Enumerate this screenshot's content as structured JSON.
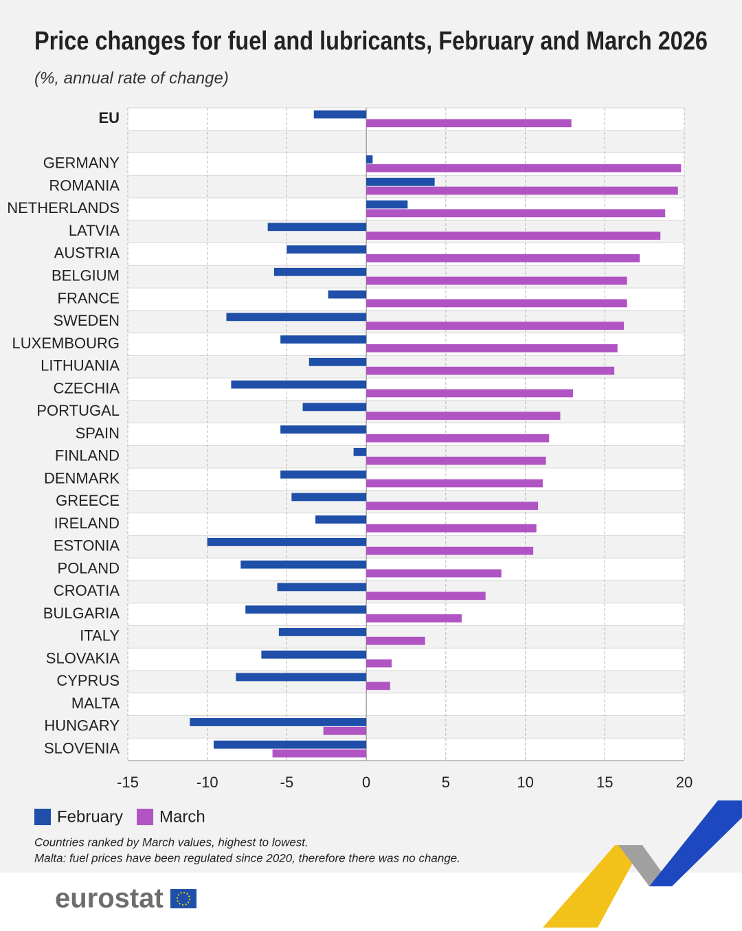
{
  "chart_data": {
    "type": "hbar",
    "title": "Price changes for fuel and lubricants, February and March 2026",
    "subtitle": "(%, annual rate of change)",
    "categories": [
      "EU",
      null,
      "GERMANY",
      "ROMANIA",
      "NETHERLANDS",
      "LATVIA",
      "AUSTRIA",
      "BELGIUM",
      "FRANCE",
      "SWEDEN",
      "LUXEMBOURG",
      "LITHUANIA",
      "CZECHIA",
      "PORTUGAL",
      "SPAIN",
      "FINLAND",
      "DENMARK",
      "GREECE",
      "IRELAND",
      "ESTONIA",
      "POLAND",
      "CROATIA",
      "BULGARIA",
      "ITALY",
      "SLOVAKIA",
      "CYPRUS",
      "MALTA",
      "HUNGARY",
      "SLOVENIA"
    ],
    "series": [
      {
        "name": "February",
        "color": "#1f4fa8",
        "values": [
          -3.3,
          null,
          0.4,
          4.3,
          2.6,
          -6.2,
          -5.0,
          -5.8,
          -2.4,
          -8.8,
          -5.4,
          -3.6,
          -8.5,
          -4.0,
          -5.4,
          -0.8,
          -5.4,
          -4.7,
          -3.2,
          -10.0,
          -7.9,
          -5.6,
          -7.6,
          -5.5,
          -6.6,
          -8.2,
          0,
          -11.1,
          -9.6
        ]
      },
      {
        "name": "March",
        "color": "#b054c4",
        "values": [
          12.9,
          null,
          19.8,
          19.6,
          18.8,
          18.5,
          17.2,
          16.4,
          16.4,
          16.2,
          15.8,
          15.6,
          13.0,
          12.2,
          11.5,
          11.3,
          11.1,
          10.8,
          10.7,
          10.5,
          8.5,
          7.5,
          6.0,
          3.7,
          1.6,
          1.5,
          0,
          -2.7,
          -5.9
        ]
      }
    ],
    "xlim": [
      -15,
      20
    ],
    "xticks": [
      -15,
      -10,
      -5,
      0,
      5,
      10,
      15,
      20
    ],
    "grid": true,
    "notes": [
      "Countries ranked by March values, highest to lowest.",
      "Malta: fuel prices have been regulated since 2020, therefore there was no change."
    ],
    "source": "eurostat"
  }
}
